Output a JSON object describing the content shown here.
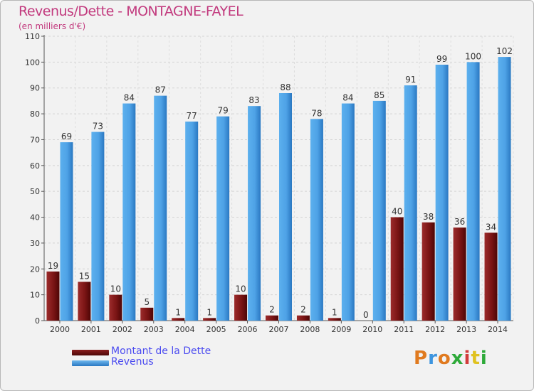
{
  "header": {
    "title": "Revenus/Dette - MONTAGNE-FAYEL",
    "subtitle": "(en milliers d'€)"
  },
  "logo": {
    "letters": [
      "P",
      "r",
      "o",
      "x",
      "i",
      "t",
      "i"
    ]
  },
  "chart_data": {
    "type": "bar",
    "title": "Revenus/Dette - MONTAGNE-FAYEL",
    "subtitle": "(en milliers d'€)",
    "categories": [
      "2000",
      "2001",
      "2002",
      "2003",
      "2004",
      "2005",
      "2006",
      "2007",
      "2008",
      "2009",
      "2010",
      "2011",
      "2012",
      "2013",
      "2014"
    ],
    "series": [
      {
        "name": "Montant de la Dette",
        "color": "#7a1414",
        "values": [
          19,
          15,
          10,
          5,
          1,
          1,
          10,
          2,
          2,
          1,
          0,
          40,
          38,
          36,
          34
        ]
      },
      {
        "name": "Revenus",
        "color": "#3d95df",
        "values": [
          69,
          73,
          84,
          87,
          77,
          79,
          83,
          88,
          78,
          84,
          85,
          91,
          99,
          100,
          102
        ]
      }
    ],
    "ylim": [
      0,
      110
    ],
    "yticks": [
      0,
      10,
      20,
      30,
      40,
      50,
      60,
      70,
      80,
      90,
      100,
      110
    ],
    "grid": true,
    "legend": "bottom-left"
  }
}
